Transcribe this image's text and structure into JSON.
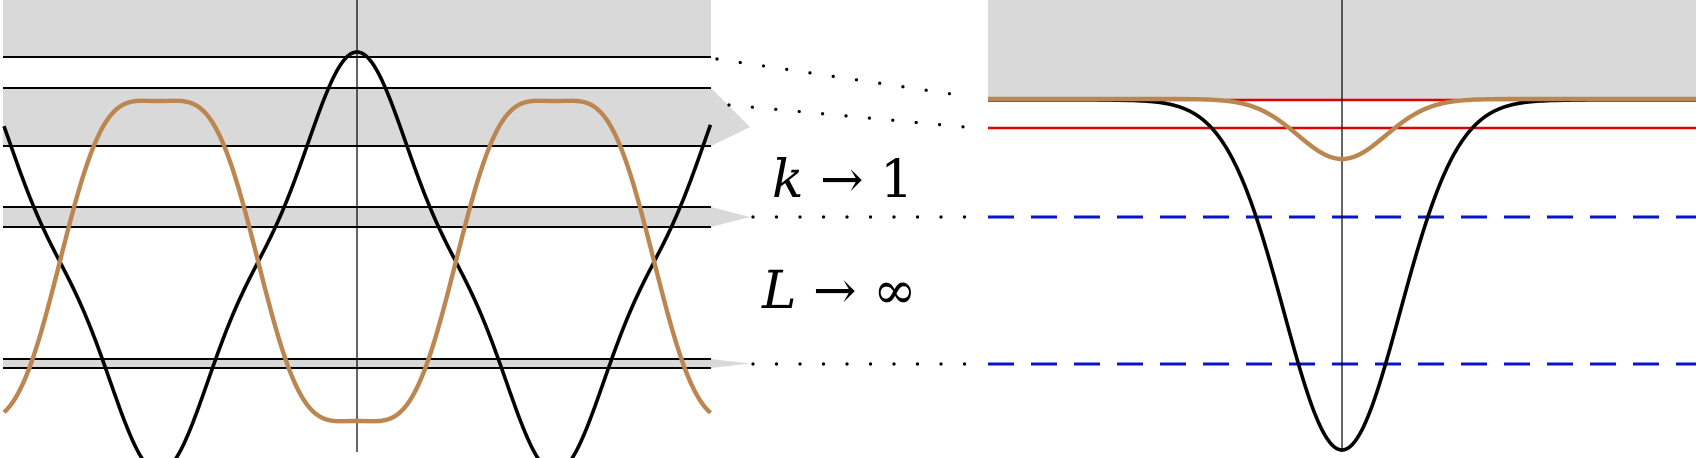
{
  "labels": {
    "limit_k_var": "k",
    "limit_k_rest": " → 1",
    "limit_L_var": "L",
    "limit_L_rest": " → ∞"
  },
  "colors": {
    "band": "#d9d9d9",
    "potential_curve": "#000000",
    "wavefunction_curve": "#bb864f",
    "bound_levels": "#e00000",
    "limit_levels": "#0a14c8"
  }
}
